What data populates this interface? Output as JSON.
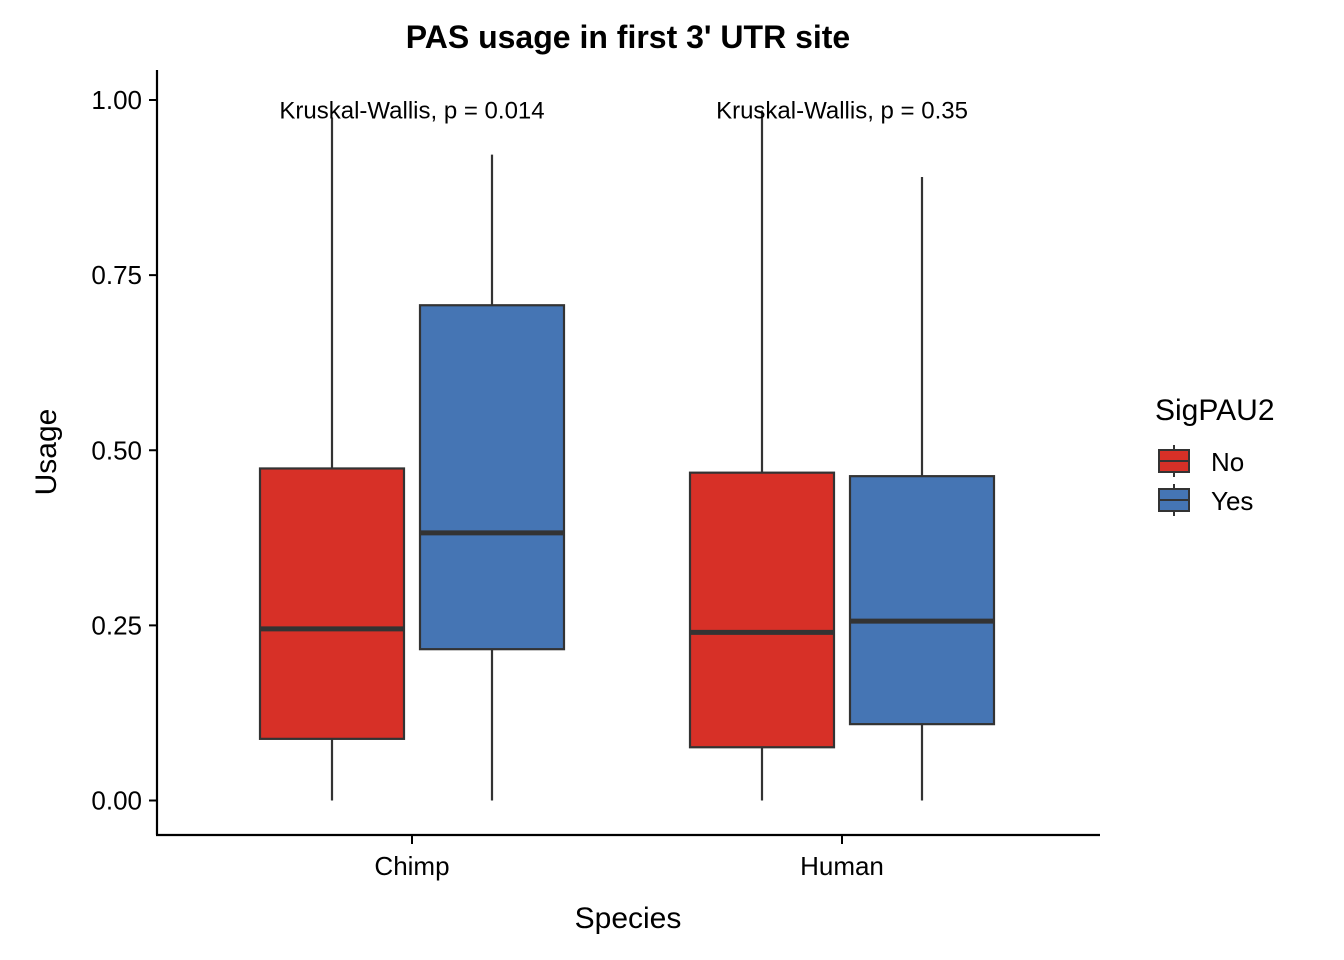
{
  "chart_data": {
    "type": "boxplot",
    "title": "PAS usage in first 3' UTR site",
    "xlabel": "Species",
    "ylabel": "Usage",
    "ylim": [
      -0.05,
      1.04
    ],
    "y_ticks": [
      "0.00",
      "0.25",
      "0.50",
      "0.75",
      "1.00"
    ],
    "y_tick_values": [
      0,
      0.25,
      0.5,
      0.75,
      1.0
    ],
    "categories": [
      "Chimp",
      "Human"
    ],
    "legend": {
      "title": "SigPAU2",
      "placement": "right",
      "items": [
        {
          "label": "No",
          "color": "#D73027"
        },
        {
          "label": "Yes",
          "color": "#4575B4"
        }
      ]
    },
    "series": [
      {
        "name": "No",
        "color": "#D73027",
        "boxes": [
          {
            "category": "Chimp",
            "min": 0.0,
            "q1": 0.088,
            "median": 0.245,
            "q3": 0.474,
            "max": 0.975
          },
          {
            "category": "Human",
            "min": 0.0,
            "q1": 0.076,
            "median": 0.24,
            "q3": 0.468,
            "max": 0.985
          }
        ]
      },
      {
        "name": "Yes",
        "color": "#4575B4",
        "boxes": [
          {
            "category": "Chimp",
            "min": 0.0,
            "q1": 0.216,
            "median": 0.382,
            "q3": 0.707,
            "max": 0.922
          },
          {
            "category": "Human",
            "min": 0.0,
            "q1": 0.109,
            "median": 0.256,
            "q3": 0.463,
            "max": 0.89
          }
        ]
      }
    ],
    "annotations": [
      {
        "category": "Chimp",
        "text": "Kruskal-Wallis, p = 0.014",
        "y": 0.985
      },
      {
        "category": "Human",
        "text": "Kruskal-Wallis, p = 0.35",
        "y": 0.985
      }
    ],
    "grid": false,
    "colors": {
      "line": "#333333",
      "axis": "#000000"
    }
  }
}
